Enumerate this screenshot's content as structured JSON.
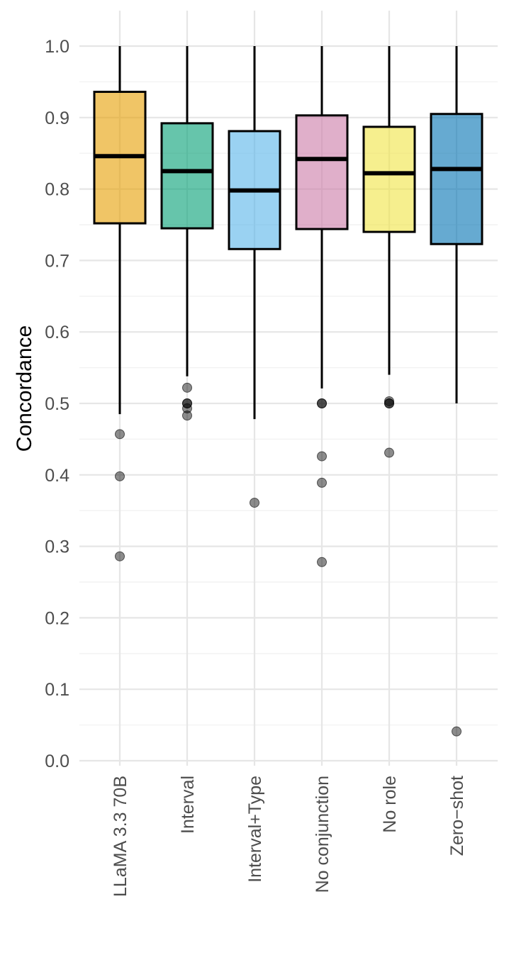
{
  "chart_data": {
    "type": "box",
    "title": "",
    "xlabel": "",
    "ylabel": "Concordance",
    "ylim": [
      0.0,
      1.0
    ],
    "y_ticks": [
      "0.0",
      "0.1",
      "0.2",
      "0.3",
      "0.4",
      "0.5",
      "0.6",
      "0.7",
      "0.8",
      "0.9",
      "1.0"
    ],
    "grid": true,
    "legend": "none",
    "categories": [
      "LLaMA 3.3 70B",
      "Interval",
      "Interval+Type",
      "No conjunction",
      "No role",
      "Zero−shot"
    ],
    "boxes": [
      {
        "category": "LLaMA 3.3 70B",
        "color": "#E69F00",
        "whisker_low": 0.485,
        "q1": 0.752,
        "median": 0.846,
        "q3": 0.936,
        "whisker_high": 1.0,
        "outliers": [
          0.457,
          0.398,
          0.286
        ]
      },
      {
        "category": "Interval",
        "color": "#009E73",
        "whisker_low": 0.538,
        "q1": 0.745,
        "median": 0.825,
        "q3": 0.892,
        "whisker_high": 1.0,
        "outliers": [
          0.522,
          0.5,
          0.5,
          0.493,
          0.483
        ]
      },
      {
        "category": "Interval+Type",
        "color": "#56B4E9",
        "whisker_low": 0.478,
        "q1": 0.716,
        "median": 0.798,
        "q3": 0.881,
        "whisker_high": 1.0,
        "outliers": [
          0.361
        ]
      },
      {
        "category": "No conjunction",
        "color": "#CC79A7",
        "whisker_low": 0.521,
        "q1": 0.744,
        "median": 0.842,
        "q3": 0.903,
        "whisker_high": 1.0,
        "outliers": [
          0.5,
          0.5,
          0.426,
          0.389,
          0.278
        ]
      },
      {
        "category": "No role",
        "color": "#F0E442",
        "whisker_low": 0.54,
        "q1": 0.74,
        "median": 0.822,
        "q3": 0.887,
        "whisker_high": 1.0,
        "outliers": [
          0.5,
          0.5,
          0.503,
          0.431
        ]
      },
      {
        "category": "Zero−shot",
        "color": "#0072B2",
        "whisker_low": 0.5,
        "q1": 0.723,
        "median": 0.828,
        "q3": 0.905,
        "whisker_high": 1.0,
        "outliers": [
          0.041
        ]
      }
    ]
  }
}
